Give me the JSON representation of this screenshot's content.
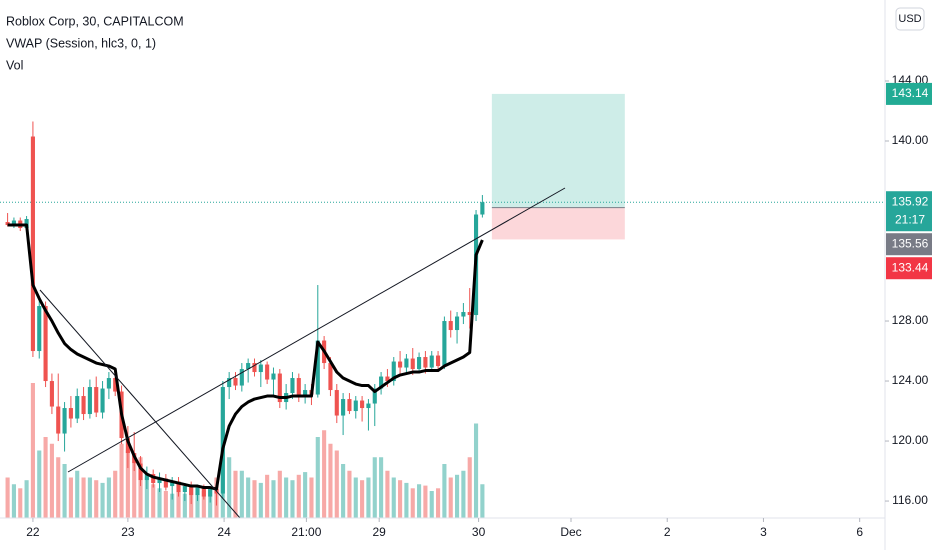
{
  "chart_data": {
    "type": "candlestick",
    "title": "Roblox Corp, 30, CAPITALCOM",
    "indicators": [
      "VWAP (Session, hlc3, 0, 1)",
      "Vol"
    ],
    "currency": "USD",
    "up_color": "#26a69a",
    "down_color": "#ef5350",
    "vwap_color": "#000000",
    "x": [
      -4,
      -3,
      -2,
      -1,
      0,
      1,
      2,
      3,
      4,
      5,
      6,
      7,
      8,
      9,
      10,
      11,
      12,
      13,
      14,
      15,
      16,
      17,
      18,
      19,
      20,
      21,
      22,
      23,
      24,
      25,
      26,
      27,
      28,
      29,
      30,
      31,
      32,
      33,
      34,
      35,
      36,
      37,
      38,
      39,
      40,
      41,
      42,
      43,
      44,
      45,
      46,
      47,
      48,
      49,
      50,
      51,
      52,
      53,
      54,
      55,
      56,
      57,
      58,
      59,
      60,
      61,
      62,
      63,
      64,
      65,
      66,
      67,
      68,
      69,
      70,
      71
    ],
    "open": [
      134.6,
      134.4,
      134.7,
      134.2,
      140.3,
      126.0,
      129.0,
      124.0,
      122.3,
      120.5,
      122.2,
      121.5,
      123.0,
      121.8,
      123.6,
      121.9,
      123.5,
      124.2,
      123.3,
      120.2,
      119.2,
      118.5,
      117.4,
      117.8,
      117.2,
      117.5,
      117.0,
      117.3,
      116.6,
      117.0,
      116.4,
      116.9,
      116.3,
      116.8,
      116.5,
      123.6,
      124.2,
      123.7,
      124.8,
      125.2,
      124.6,
      125.1,
      124.1,
      124.5,
      122.6,
      123.2,
      124.2,
      123.0,
      123.4,
      123.1,
      126.7,
      125.2,
      123.4,
      121.7,
      122.8,
      122.0,
      122.7,
      122.2,
      122.5,
      123.5,
      124.3,
      124.0,
      125.3,
      124.9,
      125.5,
      124.8,
      125.6,
      124.9,
      125.7,
      125.0,
      128.0,
      127.4,
      128.3,
      128.6,
      128.4,
      135.1
    ],
    "high": [
      135.2,
      134.9,
      134.9,
      135.0,
      141.3,
      129.6,
      129.3,
      124.5,
      124.5,
      122.6,
      123.0,
      123.5,
      123.6,
      124.1,
      124.3,
      124.0,
      124.6,
      124.8,
      123.7,
      121.0,
      120.6,
      119.0,
      118.3,
      118.1,
      117.9,
      117.8,
      117.6,
      117.6,
      117.2,
      117.3,
      117.1,
      117.1,
      117.0,
      117.2,
      124.0,
      124.6,
      124.6,
      125.2,
      125.5,
      125.5,
      125.4,
      125.3,
      124.9,
      124.8,
      123.8,
      124.6,
      124.5,
      123.8,
      123.8,
      130.4,
      127.0,
      125.6,
      123.8,
      123.2,
      123.2,
      123.0,
      123.0,
      122.8,
      123.8,
      124.6,
      124.8,
      125.6,
      126.0,
      125.8,
      126.2,
      125.9,
      126.0,
      126.0,
      126.0,
      128.3,
      128.7,
      128.6,
      129.2,
      130.2,
      135.4,
      136.4
    ],
    "low": [
      134.3,
      134.2,
      134.0,
      133.8,
      125.6,
      125.5,
      123.6,
      121.8,
      120.0,
      119.3,
      120.9,
      121.2,
      121.4,
      121.5,
      121.6,
      121.5,
      122.8,
      123.0,
      119.8,
      118.2,
      118.0,
      117.0,
      116.8,
      116.9,
      116.6,
      116.7,
      116.1,
      116.3,
      116.0,
      115.8,
      116.0,
      116.1,
      115.9,
      115.7,
      116.2,
      122.8,
      123.4,
      123.3,
      123.9,
      124.3,
      123.6,
      123.8,
      123.1,
      122.2,
      122.1,
      122.8,
      122.6,
      122.5,
      122.4,
      122.9,
      124.8,
      123.0,
      121.2,
      120.4,
      121.8,
      121.5,
      121.3,
      120.7,
      121.0,
      123.1,
      123.6,
      123.7,
      124.4,
      124.5,
      124.4,
      124.6,
      124.5,
      124.6,
      124.6,
      124.8,
      126.9,
      126.5,
      127.8,
      127.5,
      128.0,
      134.9
    ],
    "close": [
      134.4,
      134.7,
      134.2,
      134.8,
      126.0,
      129.0,
      124.0,
      122.3,
      120.5,
      122.2,
      121.5,
      123.0,
      121.8,
      123.6,
      121.9,
      123.5,
      124.2,
      123.3,
      120.2,
      119.2,
      118.5,
      117.4,
      117.8,
      117.2,
      117.5,
      116.9,
      117.3,
      116.6,
      117.0,
      116.4,
      116.9,
      116.3,
      116.8,
      116.5,
      123.6,
      124.2,
      123.7,
      124.8,
      125.2,
      124.6,
      125.1,
      124.1,
      124.5,
      122.6,
      123.2,
      124.2,
      123.0,
      123.4,
      123.1,
      126.7,
      125.2,
      123.4,
      121.7,
      122.8,
      122.0,
      122.7,
      122.2,
      122.5,
      123.5,
      124.3,
      124.0,
      125.3,
      124.9,
      125.5,
      124.8,
      125.6,
      124.9,
      125.7,
      125.0,
      128.0,
      127.4,
      128.3,
      128.6,
      128.4,
      135.1,
      135.92
    ],
    "volume": [
      30,
      25,
      22,
      28,
      100,
      50,
      60,
      55,
      45,
      40,
      30,
      35,
      30,
      30,
      28,
      26,
      30,
      35,
      55,
      50,
      40,
      45,
      30,
      25,
      22,
      20,
      18,
      20,
      18,
      22,
      18,
      20,
      22,
      30,
      80,
      45,
      35,
      35,
      30,
      28,
      26,
      32,
      28,
      35,
      30,
      28,
      32,
      34,
      30,
      60,
      65,
      55,
      50,
      40,
      35,
      30,
      28,
      30,
      45,
      45,
      35,
      30,
      28,
      26,
      22,
      25,
      24,
      20,
      22,
      40,
      30,
      32,
      35,
      45,
      70,
      25
    ],
    "vwap": [
      134.4,
      134.4,
      134.4,
      134.4,
      130.4,
      129.5,
      128.7,
      128.0,
      127.2,
      126.5,
      126.1,
      125.8,
      125.6,
      125.4,
      125.2,
      125.1,
      125.0,
      124.8,
      121.8,
      120.0,
      119.0,
      118.2,
      117.8,
      117.6,
      117.5,
      117.4,
      117.3,
      117.2,
      117.1,
      117.0,
      117.0,
      116.9,
      116.9,
      116.8,
      119.5,
      121.0,
      121.8,
      122.3,
      122.6,
      122.8,
      122.9,
      123.0,
      123.0,
      122.9,
      122.9,
      123.0,
      123.0,
      123.0,
      123.0,
      126.6,
      126.0,
      125.3,
      124.6,
      124.2,
      124.0,
      123.8,
      123.7,
      123.7,
      123.3,
      123.6,
      123.9,
      124.2,
      124.4,
      124.5,
      124.6,
      124.6,
      124.7,
      124.7,
      124.7,
      125.0,
      125.2,
      125.4,
      125.6,
      125.9,
      132.4,
      133.4
    ],
    "xlim": [
      -5.2,
      134.6
    ],
    "xticks": [
      {
        "value": 0,
        "label": "22"
      },
      {
        "value": 15,
        "label": "23"
      },
      {
        "value": 30.2,
        "label": "24"
      },
      {
        "value": 43.2,
        "label": "21:00"
      },
      {
        "value": 54.7,
        "label": "29"
      },
      {
        "value": 70.4,
        "label": "30"
      },
      {
        "value": 85,
        "label": "Dec"
      },
      {
        "value": 100.2,
        "label": "2"
      },
      {
        "value": 115.4,
        "label": "3"
      },
      {
        "value": 130.6,
        "label": "6"
      }
    ],
    "ylim": [
      114.87,
      149.4
    ],
    "yticks": [
      {
        "value": 116,
        "label": "116.00"
      },
      {
        "value": 120,
        "label": "120.00"
      },
      {
        "value": 124,
        "label": "124.00"
      },
      {
        "value": 128,
        "label": "128.00"
      },
      {
        "value": 140,
        "label": "140.00"
      },
      {
        "value": 144,
        "label": "144.00"
      }
    ],
    "position": {
      "target": 143.14,
      "entry": 135.56,
      "stop": 133.44
    },
    "price_tags": [
      {
        "value": 143.14,
        "color": "#22ab94"
      },
      {
        "value": 135.92,
        "color": "#26a69a",
        "countdown": "21:17"
      },
      {
        "value": 135.56,
        "color": "#787b86"
      },
      {
        "value": 133.44,
        "color": "#f23645"
      }
    ]
  }
}
